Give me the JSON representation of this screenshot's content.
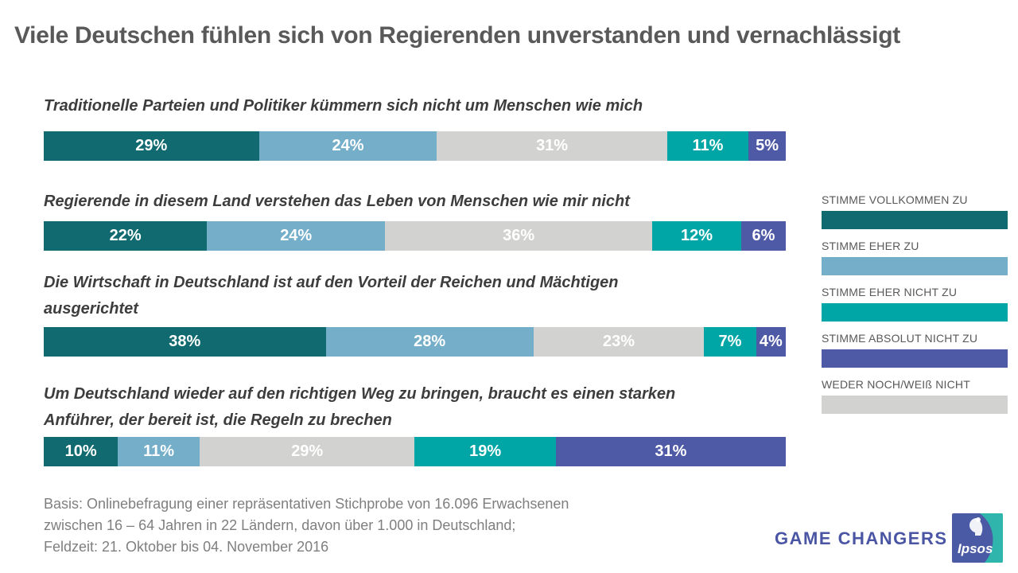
{
  "chart_data": {
    "type": "bar",
    "variant": "horizontal-stacked-100",
    "title": "Viele Deutschen fühlen sich von Regierenden unverstanden und vernachlässigt",
    "unit": "%",
    "legend_position": "right",
    "segment_series": [
      "STIMME VOLLKOMMEN ZU",
      "STIMME EHER ZU",
      "WEDER NOCH/WEIß NICHT",
      "STIMME EHER NICHT ZU",
      "STIMME ABSOLUT NICHT ZU"
    ],
    "palette": {
      "STIMME VOLLKOMMEN ZU": "#106A70",
      "STIMME EHER ZU": "#74AEC9",
      "STIMME EHER NICHT ZU": "#00A5A5",
      "STIMME ABSOLUT NICHT ZU": "#4F5AA7",
      "WEDER NOCH/WEIß NICHT": "#D2D2D1"
    },
    "legend": [
      "STIMME VOLLKOMMEN ZU",
      "STIMME EHER ZU",
      "STIMME EHER NICHT ZU",
      "STIMME ABSOLUT NICHT ZU",
      "WEDER NOCH/WEIß NICHT"
    ],
    "rows": [
      {
        "statement": "Traditionelle Parteien und Politiker kümmern sich nicht um Menschen wie mich",
        "values": [
          29,
          24,
          31,
          11,
          5
        ]
      },
      {
        "statement": "Regierende in diesem Land verstehen das Leben von Menschen wie mir nicht",
        "values": [
          22,
          24,
          36,
          12,
          6
        ]
      },
      {
        "statement": "Die Wirtschaft in Deutschland ist auf den Vorteil der Reichen und Mächtigen\nausgerichtet",
        "values": [
          38,
          28,
          23,
          7,
          4
        ]
      },
      {
        "statement": "Um Deutschland wieder auf den richtigen Weg zu bringen, braucht es einen starken\nAnführer, der bereit ist, die Regeln zu brechen",
        "values": [
          10,
          11,
          29,
          19,
          31
        ]
      }
    ]
  },
  "footer": {
    "lines": [
      "Basis: Onlinebefragung einer repräsentativen Stichprobe von 16.096 Erwachsenen",
      "zwischen 16 – 64 Jahren in 22 Ländern, davon über 1.000 in Deutschland;",
      "Feldzeit: 21. Oktober bis 04. November 2016"
    ]
  },
  "branding": {
    "tagline": "GAME CHANGERS",
    "tagline_color": "#4A55A4",
    "logo_text": "Ipsos",
    "logo_blue": "#4B5AA5",
    "logo_teal": "#2FB5AC"
  }
}
